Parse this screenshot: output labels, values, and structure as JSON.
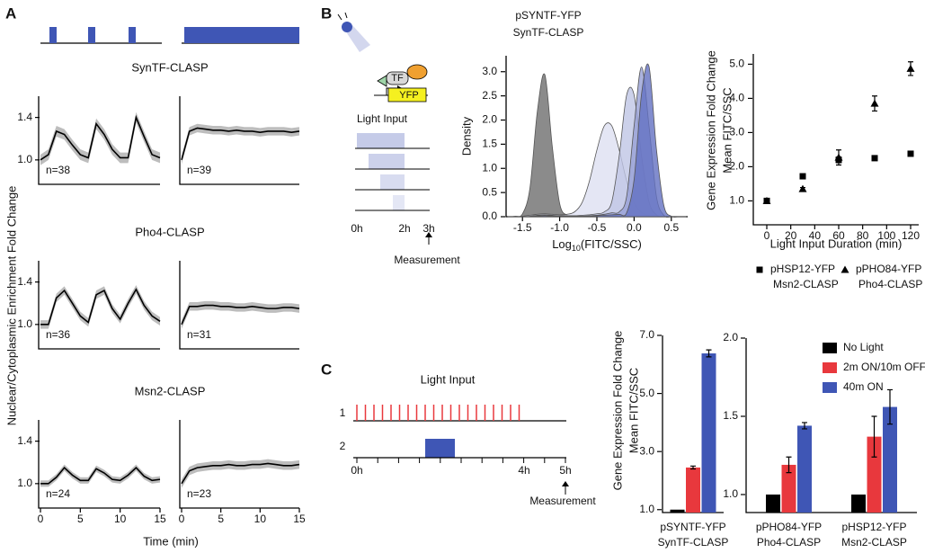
{
  "panel_labels": [
    "A",
    "B",
    "C"
  ],
  "panel_a": {
    "ylabel": "Nuclear/Cytoplasmic Enrichment Fold Change",
    "xlabel": "Time (min)"
  },
  "diagram_b": {
    "tf": "TF",
    "reporter": "YFP",
    "title": "Light Input",
    "ticks": [
      "0h",
      "2h",
      "3h"
    ],
    "measurement": "Measurement"
  },
  "diagram_c": {
    "title": "Light Input",
    "rows": [
      "1",
      "2"
    ],
    "ticks": [
      "0h",
      "4h",
      "5h"
    ],
    "measurement": "Measurement"
  },
  "chart_data": [
    {
      "type": "line",
      "title": "SynTF-CLASP",
      "annotation": "n=38",
      "x": [
        0,
        1,
        2,
        3,
        4,
        5,
        6,
        7,
        8,
        9,
        10,
        11,
        12,
        13,
        14,
        15
      ],
      "series": [
        {
          "color": "#000000",
          "error_color": "#bdbdbd",
          "error": 0.05,
          "values": [
            1.0,
            1.05,
            1.27,
            1.24,
            1.14,
            1.05,
            1.02,
            1.34,
            1.24,
            1.1,
            1.02,
            1.02,
            1.4,
            1.22,
            1.05,
            1.02
          ]
        }
      ],
      "xlim": [
        0,
        15
      ],
      "ylim": [
        0.77,
        1.6
      ],
      "yticks": [
        {
          "value": 1.0,
          "label": "1.0"
        },
        1.4
      ]
    },
    {
      "type": "line",
      "annotation": "n=39",
      "x": [
        0,
        1,
        2,
        3,
        4,
        5,
        6,
        7,
        8,
        9,
        10,
        11,
        12,
        13,
        14,
        15
      ],
      "series": [
        {
          "color": "#000000",
          "error_color": "#bdbdbd",
          "error": 0.04,
          "values": [
            1.0,
            1.27,
            1.3,
            1.29,
            1.28,
            1.28,
            1.27,
            1.28,
            1.27,
            1.27,
            1.26,
            1.27,
            1.27,
            1.27,
            1.26,
            1.27
          ]
        }
      ],
      "xlim": [
        0,
        15
      ],
      "ylim": [
        0.77,
        1.6
      ]
    },
    {
      "type": "line",
      "title": "Pho4-CLASP",
      "annotation": "n=36",
      "x": [
        0,
        1,
        2,
        3,
        4,
        5,
        6,
        7,
        8,
        9,
        10,
        11,
        12,
        13,
        14,
        15
      ],
      "series": [
        {
          "color": "#000000",
          "error_color": "#bdbdbd",
          "error": 0.04,
          "values": [
            1.0,
            1.0,
            1.25,
            1.32,
            1.2,
            1.08,
            1.02,
            1.28,
            1.32,
            1.15,
            1.05,
            1.2,
            1.33,
            1.18,
            1.08,
            1.03
          ]
        }
      ],
      "xlim": [
        0,
        15
      ],
      "ylim": [
        0.77,
        1.6
      ],
      "yticks": [
        {
          "value": 1.0,
          "label": "1.0"
        },
        1.4
      ]
    },
    {
      "type": "line",
      "annotation": "n=31",
      "x": [
        0,
        1,
        2,
        3,
        4,
        5,
        6,
        7,
        8,
        9,
        10,
        11,
        12,
        13,
        14,
        15
      ],
      "series": [
        {
          "color": "#000000",
          "error_color": "#bdbdbd",
          "error": 0.04,
          "values": [
            1.0,
            1.17,
            1.17,
            1.18,
            1.18,
            1.17,
            1.17,
            1.16,
            1.16,
            1.17,
            1.16,
            1.15,
            1.15,
            1.16,
            1.16,
            1.15
          ]
        }
      ],
      "xlim": [
        0,
        15
      ],
      "ylim": [
        0.77,
        1.6
      ]
    },
    {
      "type": "line",
      "title": "Msn2-CLASP",
      "annotation": "n=24",
      "x": [
        0,
        1,
        2,
        3,
        4,
        5,
        6,
        7,
        8,
        9,
        10,
        11,
        12,
        13,
        14,
        15
      ],
      "series": [
        {
          "color": "#000000",
          "error_color": "#bdbdbd",
          "error": 0.03,
          "values": [
            1.0,
            1.0,
            1.06,
            1.15,
            1.08,
            1.03,
            1.03,
            1.14,
            1.1,
            1.04,
            1.03,
            1.08,
            1.15,
            1.07,
            1.03,
            1.04
          ]
        }
      ],
      "xlim": [
        0,
        15
      ],
      "ylim": [
        0.77,
        1.6
      ],
      "yticks": [
        {
          "value": 1.0,
          "label": "1.0"
        },
        1.4
      ],
      "xticks": [
        0,
        5,
        10,
        15
      ]
    },
    {
      "type": "line",
      "annotation": "n=23",
      "x": [
        0,
        1,
        2,
        3,
        4,
        5,
        6,
        7,
        8,
        9,
        10,
        11,
        12,
        13,
        14,
        15
      ],
      "series": [
        {
          "color": "#000000",
          "error_color": "#bdbdbd",
          "error": 0.04,
          "values": [
            1.0,
            1.12,
            1.15,
            1.16,
            1.17,
            1.17,
            1.18,
            1.17,
            1.17,
            1.18,
            1.18,
            1.19,
            1.18,
            1.17,
            1.17,
            1.18
          ]
        }
      ],
      "xlim": [
        0,
        15
      ],
      "ylim": [
        0.77,
        1.6
      ],
      "xticks": [
        0,
        5,
        10,
        15
      ]
    },
    {
      "type": "density",
      "title": [
        "pSYNTF-YFP",
        "SynTF-CLASP"
      ],
      "ylabel": "Density",
      "xlabel": [
        "Log",
        "10",
        "(FITC/SSC)"
      ],
      "x": [
        -1.7,
        -1.6,
        -1.5,
        -1.4,
        -1.3,
        -1.2,
        -1.1,
        -1.0,
        -0.9,
        -0.8,
        -0.7,
        -0.6,
        -0.5,
        -0.4,
        -0.3,
        -0.2,
        -0.1,
        0.0,
        0.1,
        0.2,
        0.3,
        0.4,
        0.5,
        0.6,
        0.7
      ],
      "series": [
        {
          "color": "#6e6e6e",
          "values": [
            0,
            0.01,
            0.06,
            0.59,
            2.18,
            2.94,
            1.46,
            0.27,
            0.03,
            0.01,
            0,
            0,
            0,
            0,
            0,
            0,
            0,
            0,
            0,
            0,
            0,
            0,
            0,
            0,
            0
          ]
        },
        {
          "color": "#dde0f1",
          "values": [
            0,
            0,
            0.01,
            0.03,
            0.05,
            0.06,
            0.05,
            0.04,
            0.05,
            0.1,
            0.29,
            0.74,
            1.38,
            1.88,
            1.88,
            1.38,
            0.74,
            0.29,
            0.09,
            0.02,
            0,
            0,
            0,
            0,
            0
          ]
        },
        {
          "color": "#bfc5e5",
          "values": [
            0,
            0,
            0,
            0.01,
            0.03,
            0.04,
            0.03,
            0.02,
            0.02,
            0.02,
            0.03,
            0.04,
            0.06,
            0.1,
            0.31,
            1.26,
            2.52,
            2.52,
            1.26,
            0.31,
            0.04,
            0,
            0,
            0,
            0
          ]
        },
        {
          "color": "#97a0d6",
          "values": [
            0,
            0,
            0,
            0,
            0.02,
            0.03,
            0.02,
            0.01,
            0.01,
            0.01,
            0.01,
            0.02,
            0.03,
            0.05,
            0.08,
            0.1,
            0.42,
            1.88,
            3.1,
            1.88,
            0.42,
            0.03,
            0,
            0,
            0
          ]
        },
        {
          "color": "#6370c2",
          "values": [
            0,
            0,
            0,
            0,
            0.01,
            0.02,
            0.01,
            0.01,
            0.01,
            0.01,
            0.01,
            0.01,
            0.02,
            0.03,
            0.04,
            0.05,
            0.08,
            0.77,
            2.54,
            3.11,
            1.4,
            0.23,
            0.01,
            0,
            0
          ]
        }
      ],
      "xlim": [
        -1.72,
        0.72
      ],
      "ylim": [
        0,
        3.33
      ],
      "xticks": [
        -1.5,
        {
          "value": -1.0,
          "label": "-1.0"
        },
        -0.5,
        {
          "value": 0.0,
          "label": "0.0"
        },
        0.5
      ],
      "yticks": [
        {
          "value": 0,
          "label": "0.0"
        },
        0.5,
        {
          "value": 1.0,
          "label": "1.0"
        },
        1.5,
        {
          "value": 2.0,
          "label": "2.0"
        },
        2.5,
        {
          "value": 3.0,
          "label": "3.0"
        }
      ]
    },
    {
      "type": "scatter",
      "ylabel": [
        "Gene Expression Fold Change",
        "Mean FITC/SSC"
      ],
      "xlabel": "Light Input Duration (min)",
      "x": [
        0,
        30,
        60,
        90,
        120
      ],
      "series": [
        {
          "name": [
            "pHSP12-YFP",
            "Msn2-CLASP"
          ],
          "marker": "square",
          "color": "#000000",
          "values": [
            1.0,
            1.72,
            2.2,
            2.25,
            2.38
          ],
          "errors": [
            0.03,
            0.04,
            0.08,
            0.05,
            0.05
          ]
        },
        {
          "name": [
            "pPHO84-YFP",
            "Pho4-CLASP"
          ],
          "marker": "triangle",
          "color": "#000000",
          "values": [
            1.0,
            1.35,
            2.27,
            3.85,
            4.87
          ],
          "errors": [
            0.02,
            0.04,
            0.22,
            0.22,
            0.2
          ]
        }
      ],
      "xlim": [
        -11.25,
        126.75
      ],
      "ylim": [
        0.3,
        5.3
      ],
      "xticks": [
        0,
        20,
        40,
        60,
        80,
        100,
        120
      ],
      "yticks": [
        {
          "value": 1.0,
          "label": "1.0"
        },
        {
          "value": 2.0,
          "label": "2.0"
        },
        {
          "value": 3.0,
          "label": "3.0"
        },
        {
          "value": 4.0,
          "label": "4.0"
        },
        {
          "value": 5.0,
          "label": "5.0"
        }
      ]
    },
    {
      "type": "bar",
      "ylabel": [
        "Gene Expression Fold Change",
        "Mean FITC/SSC"
      ],
      "categories": [
        [
          "pSYNTF-YFP",
          "SynTF-CLASP"
        ]
      ],
      "series": [
        {
          "color": "#000000",
          "values": [
            1.0
          ],
          "errors": [
            0
          ]
        },
        {
          "color": "#e8383d",
          "values": [
            2.45
          ],
          "errors": [
            0.05
          ]
        },
        {
          "color": "#3f56b5",
          "values": [
            6.38
          ],
          "errors": [
            0.12
          ]
        }
      ],
      "ylim": [
        0.9,
        7.0
      ],
      "yticks": [
        {
          "value": 1.0,
          "label": "1.0"
        },
        {
          "value": 3.0,
          "label": "3.0"
        },
        {
          "value": 5.0,
          "label": "5.0"
        },
        {
          "value": 7.0,
          "label": "7.0"
        }
      ]
    },
    {
      "type": "bar",
      "legend": "upper right",
      "categories": [
        [
          "pPHO84-YFP",
          "Pho4-CLASP"
        ],
        [
          "pHSP12-YFP",
          "Msn2-CLASP"
        ]
      ],
      "series": [
        {
          "name": "No Light",
          "color": "#000000",
          "values": [
            1.0,
            1.0
          ],
          "errors": [
            0,
            0
          ]
        },
        {
          "name": "2m ON/10m OFF",
          "color": "#e8383d",
          "values": [
            1.19,
            1.37
          ],
          "errors": [
            0.05,
            0.13
          ]
        },
        {
          "name": "40m ON",
          "color": "#3f56b5",
          "values": [
            1.44,
            1.56
          ],
          "errors": [
            0.02,
            0.11
          ]
        }
      ],
      "ylim": [
        0.885,
        2.0
      ],
      "yticks": [
        {
          "value": 1.0,
          "label": "1.0"
        },
        1.5,
        {
          "value": 2.0,
          "label": "2.0"
        }
      ]
    }
  ]
}
